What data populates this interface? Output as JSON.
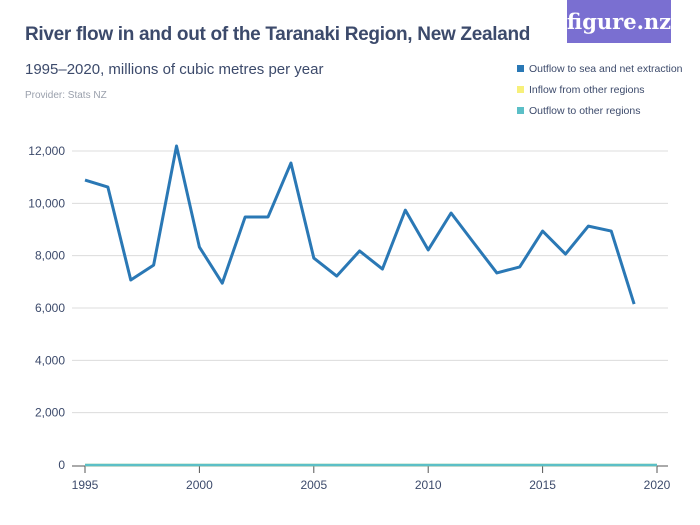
{
  "header": {
    "logo": "figure.nz"
  },
  "chart_data": {
    "type": "line",
    "title": "River flow in and out of the Taranaki Region, New Zealand",
    "subtitle": "1995–2020, millions of cubic metres per year",
    "provider": "Provider: Stats NZ",
    "xlim": [
      1995,
      2020
    ],
    "ylim": [
      0,
      12000
    ],
    "grid": true,
    "legend_position": "top-right",
    "x_ticks": [
      "1995",
      "2000",
      "2005",
      "2010",
      "2015",
      "2020"
    ],
    "y_ticks": [
      "0",
      "2,000",
      "4,000",
      "6,000",
      "8,000",
      "10,000",
      "12,000"
    ],
    "series": [
      {
        "name": "Outflow to sea and net extraction",
        "color": "#2a78b5",
        "x": [
          1995,
          1996,
          1997,
          1998,
          1999,
          2000,
          2001,
          2002,
          2003,
          2004,
          2005,
          2006,
          2007,
          2008,
          2009,
          2010,
          2011,
          2012,
          2013,
          2014,
          2015,
          2016,
          2017,
          2018,
          2019
        ],
        "values": [
          10890,
          10620,
          7070,
          7640,
          12190,
          8330,
          6950,
          9480,
          9480,
          11540,
          7910,
          7220,
          8180,
          7490,
          9740,
          8220,
          9630,
          8480,
          7340,
          7570,
          8940,
          8060,
          9130,
          8940,
          6150
        ]
      },
      {
        "name": "Inflow from other regions",
        "color": "#f7f07a",
        "x": [
          1995,
          2020
        ],
        "values": [
          0,
          0
        ]
      },
      {
        "name": "Outflow to other regions",
        "color": "#5bbfc7",
        "x": [
          1995,
          2020
        ],
        "values": [
          0,
          0
        ]
      }
    ]
  }
}
